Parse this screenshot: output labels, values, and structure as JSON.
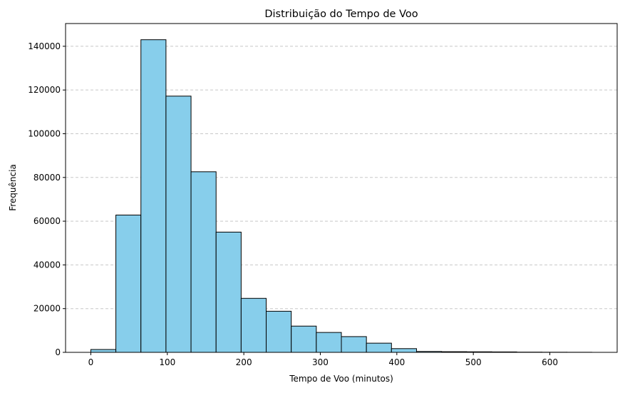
{
  "chart_data": {
    "type": "bar",
    "subtype": "histogram",
    "title": "Distribuição do Tempo de Voo",
    "xlabel": "Tempo de Voo (minutos)",
    "ylabel": "Frequência",
    "xlim": [
      -33,
      688
    ],
    "ylim": [
      0,
      150400
    ],
    "xticks": [
      0,
      100,
      200,
      300,
      400,
      500,
      600
    ],
    "xtick_labels": [
      "0",
      "100",
      "200",
      "300",
      "400",
      "500",
      "600"
    ],
    "yticks": [
      0,
      20000,
      40000,
      60000,
      80000,
      100000,
      120000,
      140000
    ],
    "ytick_labels": [
      "0",
      "20000",
      "40000",
      "60000",
      "80000",
      "100000",
      "120000",
      "140000"
    ],
    "grid": {
      "axis": "y",
      "style": "dashed"
    },
    "bar_color": "#87ceeb",
    "edge_color": "#000000",
    "bins": [
      {
        "start": 0,
        "end": 32.75,
        "count": 1300
      },
      {
        "start": 32.75,
        "end": 65.5,
        "count": 62800
      },
      {
        "start": 65.5,
        "end": 98.25,
        "count": 143000
      },
      {
        "start": 98.25,
        "end": 131,
        "count": 117200
      },
      {
        "start": 131,
        "end": 163.75,
        "count": 82600
      },
      {
        "start": 163.75,
        "end": 196.5,
        "count": 55000
      },
      {
        "start": 196.5,
        "end": 229.25,
        "count": 24700
      },
      {
        "start": 229.25,
        "end": 262,
        "count": 18800
      },
      {
        "start": 262,
        "end": 294.75,
        "count": 12000
      },
      {
        "start": 294.75,
        "end": 327.5,
        "count": 9100
      },
      {
        "start": 327.5,
        "end": 360.25,
        "count": 7200
      },
      {
        "start": 360.25,
        "end": 393,
        "count": 4200
      },
      {
        "start": 393,
        "end": 425.75,
        "count": 1700
      },
      {
        "start": 425.75,
        "end": 458.5,
        "count": 400
      },
      {
        "start": 458.5,
        "end": 491.25,
        "count": 300
      },
      {
        "start": 491.25,
        "end": 524,
        "count": 250
      },
      {
        "start": 524,
        "end": 556.75,
        "count": 200
      },
      {
        "start": 556.75,
        "end": 589.5,
        "count": 100
      },
      {
        "start": 589.5,
        "end": 622.25,
        "count": 60
      },
      {
        "start": 622.25,
        "end": 655,
        "count": 40
      }
    ]
  }
}
